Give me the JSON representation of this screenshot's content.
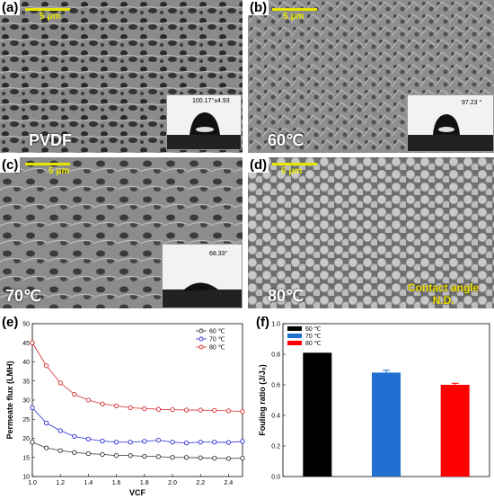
{
  "panels": {
    "a": {
      "label": "(a)",
      "scale": "5 μm",
      "tag": "PVDF",
      "angle": "100.17°±4.93"
    },
    "b": {
      "label": "(b)",
      "scale": "5 μm",
      "tag": "60℃",
      "angle": "97.23 °"
    },
    "c": {
      "label": "(c)",
      "scale": "5 μm",
      "tag": "70℃",
      "angle": "68.33°"
    },
    "d": {
      "label": "(d)",
      "scale": "5 μm",
      "tag": "80℃",
      "note1": "Contact angle",
      "note2": "N.D."
    },
    "e": {
      "label": "(e)"
    },
    "f": {
      "label": "(f)"
    }
  },
  "chart_data": [
    {
      "type": "scatter",
      "xlabel": "VCF",
      "ylabel": "Permeate flux (LMH)",
      "xlim": [
        1.0,
        2.5
      ],
      "ylim": [
        10,
        50
      ],
      "xticks": [
        "1.0",
        "1.2",
        "1.4",
        "1.6",
        "1.8",
        "2.0",
        "2.2",
        "2.4"
      ],
      "yticks": [
        "10",
        "15",
        "20",
        "25",
        "30",
        "35",
        "40",
        "45",
        "50"
      ],
      "legend_position": "top-right",
      "series": [
        {
          "name": "60 ℃",
          "color": "#333333",
          "x": [
            1.0,
            1.1,
            1.2,
            1.3,
            1.4,
            1.5,
            1.6,
            1.7,
            1.8,
            1.9,
            2.0,
            2.1,
            2.2,
            2.3,
            2.4,
            2.5
          ],
          "y": [
            19,
            17.5,
            16.8,
            16.3,
            16,
            15.8,
            15.5,
            15.5,
            15.3,
            15.2,
            15,
            15,
            14.9,
            14.8,
            14.7,
            14.8
          ]
        },
        {
          "name": "70 ℃",
          "color": "#2b2bd6",
          "x": [
            1.0,
            1.1,
            1.2,
            1.3,
            1.4,
            1.5,
            1.6,
            1.7,
            1.8,
            1.9,
            2.0,
            2.1,
            2.2,
            2.3,
            2.4,
            2.5
          ],
          "y": [
            28,
            24,
            22,
            20.5,
            19.8,
            19.3,
            19,
            19,
            19.2,
            19.5,
            19,
            18.8,
            19,
            19,
            18.9,
            19.2
          ]
        },
        {
          "name": "80 ℃",
          "color": "#d62b2b",
          "x": [
            1.0,
            1.1,
            1.2,
            1.3,
            1.4,
            1.5,
            1.6,
            1.7,
            1.8,
            1.9,
            2.0,
            2.1,
            2.2,
            2.3,
            2.4,
            2.5
          ],
          "y": [
            45,
            39,
            34.5,
            31.5,
            30,
            29,
            28.5,
            28,
            27.8,
            27.6,
            27.5,
            27.4,
            27.4,
            27.3,
            27.2,
            27
          ]
        }
      ]
    },
    {
      "type": "bar",
      "ylabel": "Fouling ratio (J/J₀)",
      "ylim": [
        0.0,
        1.0
      ],
      "yticks": [
        "0.0",
        "0.2",
        "0.4",
        "0.6",
        "0.8",
        "1.0"
      ],
      "legend_position": "top-left",
      "categories": [
        "60 ℃",
        "70 ℃",
        "80 ℃"
      ],
      "values": [
        0.81,
        0.68,
        0.6
      ],
      "errors": [
        0.0,
        0.015,
        0.01
      ],
      "colors": [
        "#000000",
        "#1e6fd0",
        "#ff0000"
      ]
    }
  ]
}
